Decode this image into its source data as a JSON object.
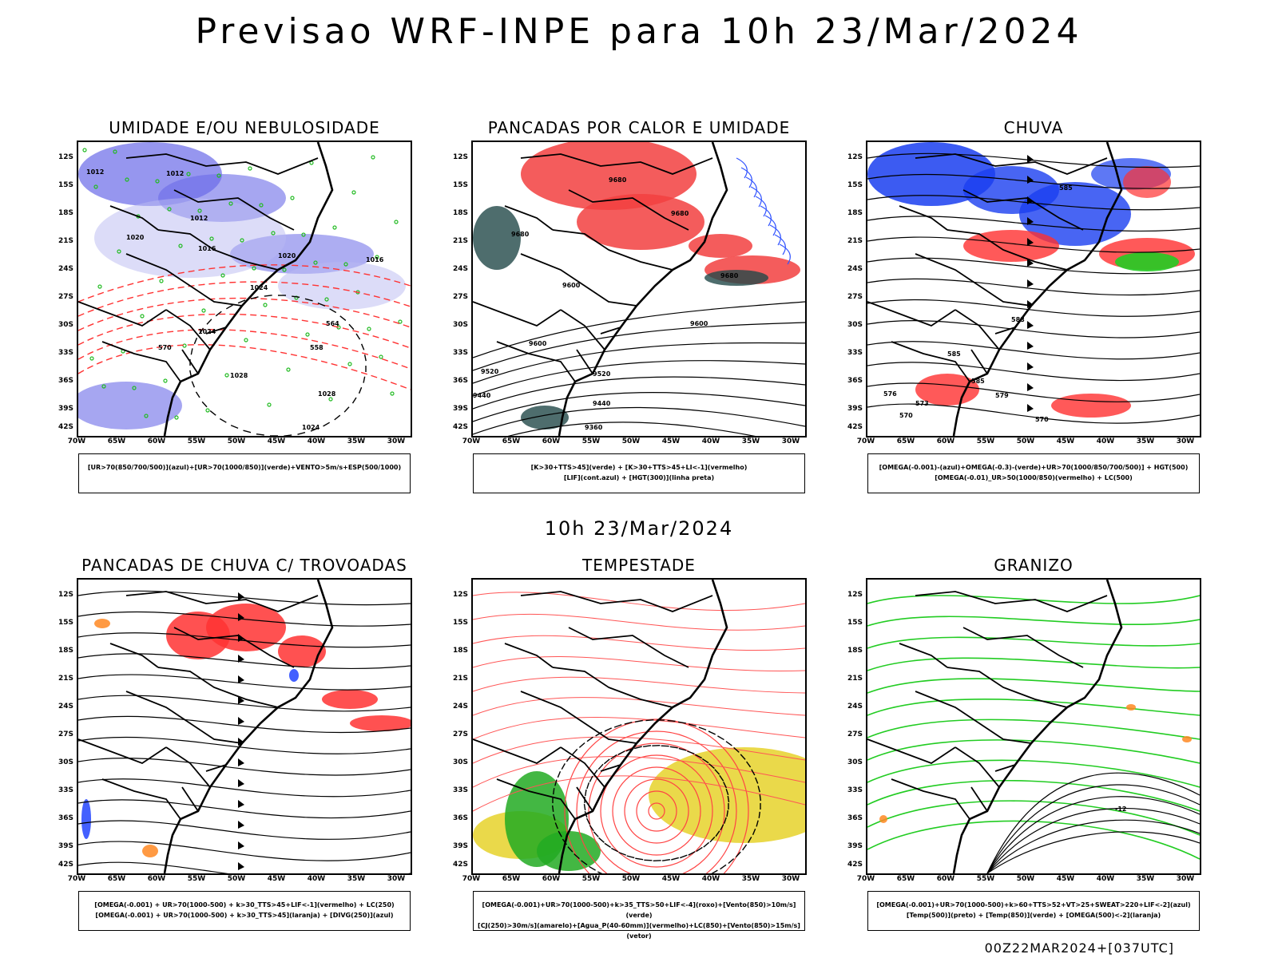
{
  "title": "Previsao WRF-INPE  para 10h 23/Mar/2024",
  "subtitle": "10h 23/Mar/2024",
  "footer": "00Z22MAR2024+[037UTC]",
  "axes": {
    "lat_ticks": [
      "12S",
      "15S",
      "18S",
      "21S",
      "24S",
      "27S",
      "30S",
      "33S",
      "36S",
      "39S",
      "42S"
    ],
    "lon_ticks": [
      "70W",
      "65W",
      "60W",
      "55W",
      "50W",
      "45W",
      "40W",
      "35W",
      "30W"
    ]
  },
  "panels": [
    {
      "id": "umidade",
      "title": "UMIDADE E/OU NEBULOSIDADE",
      "legend": [
        "[UR>70(850/700/500)](azul)+[UR>70(1000/850)](verde)+VENTO>5m/s+ESP(500/1000)"
      ],
      "labels": [
        "1012",
        "1012",
        "1012",
        "1016",
        "1020",
        "1020",
        "1024",
        "1024",
        "1028",
        "1028",
        "1016",
        "1024",
        "570",
        "564",
        "558"
      ]
    },
    {
      "id": "pancadas-calor",
      "title": "PANCADAS POR CALOR E UMIDADE",
      "legend": [
        "[K>30+TTS>45](verde) + [K>30+TTS>45+LI<-1](vermelho)",
        "[LIF](cont.azul) + [HGT(300)](linha preta)"
      ],
      "labels": [
        "9680",
        "9680",
        "9680",
        "9680",
        "9600",
        "9600",
        "9600",
        "9520",
        "9520",
        "9440",
        "9440",
        "9360"
      ]
    },
    {
      "id": "chuva",
      "title": "CHUVA",
      "legend": [
        "[OMEGA(-0.001)-(azul)+OMEGA(-0.3)-(verde)+UR>70(1000/850/700/500)] + HGT(500)",
        "[OMEGA(-0.01)_UR>50(1000/850)(vermelho) + LC(500)"
      ],
      "labels": [
        "585",
        "588",
        "585",
        "585",
        "579",
        "576",
        "573",
        "570",
        "570"
      ]
    },
    {
      "id": "trovoadas",
      "title": "PANCADAS DE CHUVA C/ TROVOADAS",
      "legend": [
        "[OMEGA(-0.001) + UR>70(1000-500) + k>30_TTS>45+LIF<-1](vermelho) + LC(250)",
        "[OMEGA(-0.001) + UR>70(1000-500) + k>30_TTS>45](laranja) + [DIVG(250)](azul)"
      ],
      "labels": []
    },
    {
      "id": "tempestade",
      "title": "TEMPESTADE",
      "legend": [
        "[OMEGA(-0.001)+UR>70(1000-500)+k>35_TTS>50+LIF<-4](roxo)+[Vento(850)>10m/s](verde)",
        "[CJ(250)>30m/s](amarelo)+[Agua_P(40-60mm)](vermelho)+LC(850)+[Vento(850)>15m/s](vetor)"
      ],
      "labels": []
    },
    {
      "id": "granizo",
      "title": "GRANIZO",
      "legend": [
        "[OMEGA(-0.001)+UR>70(1000-500)+k>60+TTS>52+VT>25+SWEAT>220+LIF<-2](azul)",
        "[Temp(500)](preto) + [Temp(850)](verde) + [OMEGA(500)<-2](laranja)"
      ],
      "labels": [
        "-12"
      ]
    }
  ]
}
